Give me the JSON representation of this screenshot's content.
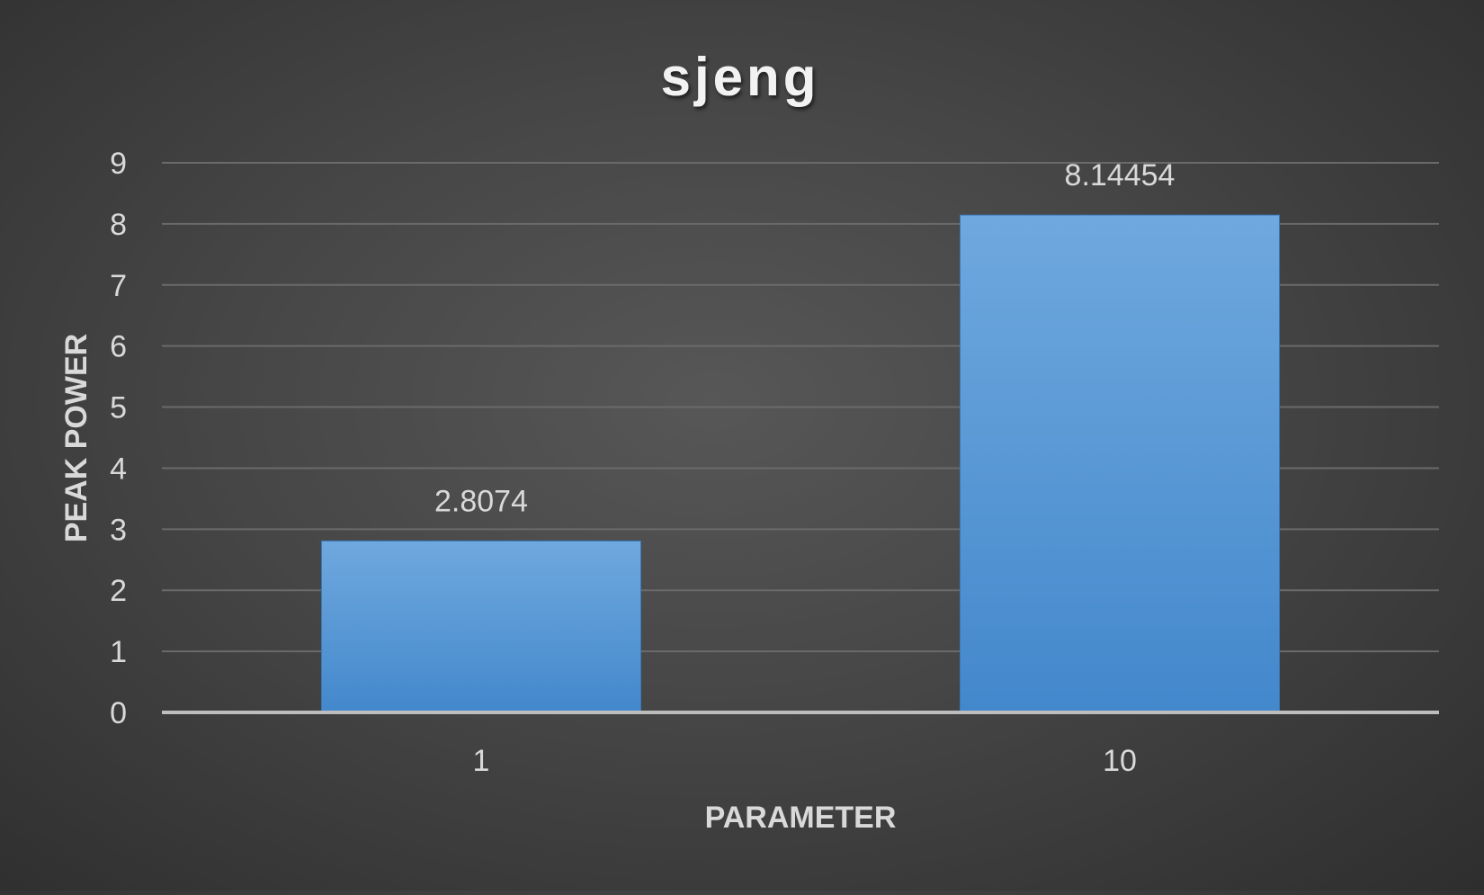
{
  "chart_data": {
    "type": "bar",
    "title": "sjeng",
    "xlabel": "PARAMETER",
    "ylabel": "PEAK POWER",
    "categories": [
      "1",
      "10"
    ],
    "values": [
      2.8074,
      8.14454
    ],
    "data_labels": [
      "2.8074",
      "8.14454"
    ],
    "yticks": [
      "0",
      "1",
      "2",
      "3",
      "4",
      "5",
      "6",
      "7",
      "8",
      "9"
    ],
    "ylim": [
      0,
      9
    ],
    "grid": true,
    "legend": "none",
    "colors": {
      "bar_top": "#6fa8de",
      "bar_bottom": "#4388cc",
      "gridline": "#6a6a6a",
      "axis": "#bdbdbd",
      "text": "#d9d9d9",
      "title": "#f2f2f2"
    }
  }
}
